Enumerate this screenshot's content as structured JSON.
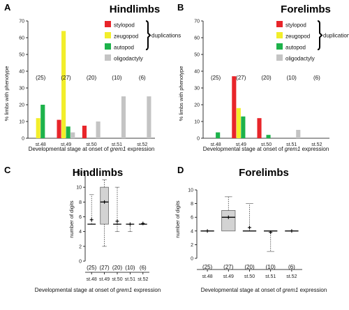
{
  "colors": {
    "stylopod": "#e8252a",
    "zeugopod": "#f2ee2a",
    "autopod": "#1db24b",
    "oligodactyly": "#c4c4c4",
    "box_fill": "#d3d3d3"
  },
  "chart_data": [
    {
      "panel": "A",
      "type": "bar",
      "title": "Hindlimbs",
      "xlabel": "Developmental stage at onset of grem1 expression",
      "ylabel": "% limbs with phenotype",
      "ylim": [
        0,
        70
      ],
      "yticks": [
        0,
        10,
        20,
        30,
        40,
        50,
        60,
        70
      ],
      "categories": [
        "st.48",
        "st.49",
        "st.50",
        "st.51",
        "st.52"
      ],
      "counts": [
        "(25)",
        "(27)",
        "(20)",
        "(10)",
        "(6)"
      ],
      "legend_position": "top-right",
      "legend_bracket_label": "duplications",
      "series": [
        {
          "name": "stylopod",
          "color": "#e8252a",
          "values": [
            0,
            11,
            7.5,
            0,
            0
          ]
        },
        {
          "name": "zeugopod",
          "color": "#f2ee2a",
          "values": [
            12,
            64,
            0,
            0,
            0
          ]
        },
        {
          "name": "autopod",
          "color": "#1db24b",
          "values": [
            20,
            7,
            0,
            0,
            0
          ]
        },
        {
          "name": "oligodactyly",
          "color": "#c4c4c4",
          "values": [
            0,
            3.5,
            10,
            25,
            25
          ]
        }
      ]
    },
    {
      "panel": "B",
      "type": "bar",
      "title": "Forelimbs",
      "xlabel": "Developmental stage at onset of grem1 expression",
      "ylabel": "% limbs with phenotype",
      "ylim": [
        0,
        70
      ],
      "yticks": [
        0,
        10,
        20,
        30,
        40,
        50,
        60,
        70
      ],
      "categories": [
        "st.48",
        "st.49",
        "st.50",
        "st.51",
        "st.52"
      ],
      "counts": [
        "(25)",
        "(27)",
        "(20)",
        "(10)",
        "(6)"
      ],
      "legend_position": "top-right",
      "legend_bracket_label": "duplications",
      "series": [
        {
          "name": "stylopod",
          "color": "#e8252a",
          "values": [
            0,
            37,
            12,
            0,
            0
          ]
        },
        {
          "name": "zeugopod",
          "color": "#f2ee2a",
          "values": [
            0,
            18,
            0,
            0,
            0
          ]
        },
        {
          "name": "autopod",
          "color": "#1db24b",
          "values": [
            3.5,
            13,
            2,
            0,
            0
          ]
        },
        {
          "name": "oligodactyly",
          "color": "#c4c4c4",
          "values": [
            0,
            0,
            0,
            5,
            0
          ]
        }
      ]
    },
    {
      "panel": "C",
      "type": "boxplot",
      "title": "Hindlimbs",
      "xlabel": "Developmental stage at onset of grem1 expression",
      "ylabel": "number of digits",
      "ylim": [
        0,
        12
      ],
      "yticks": [
        0,
        2,
        4,
        6,
        8,
        10,
        12
      ],
      "categories": [
        "st.48",
        "st.49",
        "st.50",
        "st.51",
        "st.52"
      ],
      "counts": [
        "(25)",
        "(27)",
        "(20)",
        "(10)",
        "(6)"
      ],
      "boxes": [
        {
          "min": 5,
          "q1": 5,
          "median": 5,
          "q3": 5,
          "max": 9,
          "mean": 5.6
        },
        {
          "min": 2,
          "q1": 5,
          "median": 8,
          "q3": 10,
          "max": 11,
          "mean": 8
        },
        {
          "min": 4,
          "q1": 5,
          "median": 5,
          "q3": 5,
          "max": 10,
          "mean": 5.4
        },
        {
          "min": 4,
          "q1": 5,
          "median": 5,
          "q3": 5,
          "max": 5,
          "mean": 5
        },
        {
          "min": 5,
          "q1": 5,
          "median": 5,
          "q3": 5,
          "max": 5,
          "mean": 5.1
        }
      ]
    },
    {
      "panel": "D",
      "type": "boxplot",
      "title": "Forelimbs",
      "xlabel": "Developmental stage at onset of grem1 expression",
      "ylabel": "number of digits",
      "ylim": [
        0,
        10
      ],
      "yticks": [
        0,
        2,
        4,
        6,
        8,
        10
      ],
      "categories": [
        "st.48",
        "st.49",
        "st.50",
        "st.51",
        "st.52"
      ],
      "counts": [
        "(25)",
        "(27)",
        "(20)",
        "(10)",
        "(6)"
      ],
      "boxes": [
        {
          "min": 4,
          "q1": 4,
          "median": 4,
          "q3": 4,
          "max": 4,
          "mean": 4
        },
        {
          "min": 4,
          "q1": 4,
          "median": 6,
          "q3": 7,
          "max": 9,
          "mean": 6
        },
        {
          "min": 4,
          "q1": 4,
          "median": 4,
          "q3": 4,
          "max": 8,
          "mean": 4.5
        },
        {
          "min": 1,
          "q1": 4,
          "median": 4,
          "q3": 4,
          "max": 4,
          "mean": 3.8
        },
        {
          "min": 4,
          "q1": 4,
          "median": 4,
          "q3": 4,
          "max": 4,
          "mean": 4
        }
      ]
    }
  ]
}
